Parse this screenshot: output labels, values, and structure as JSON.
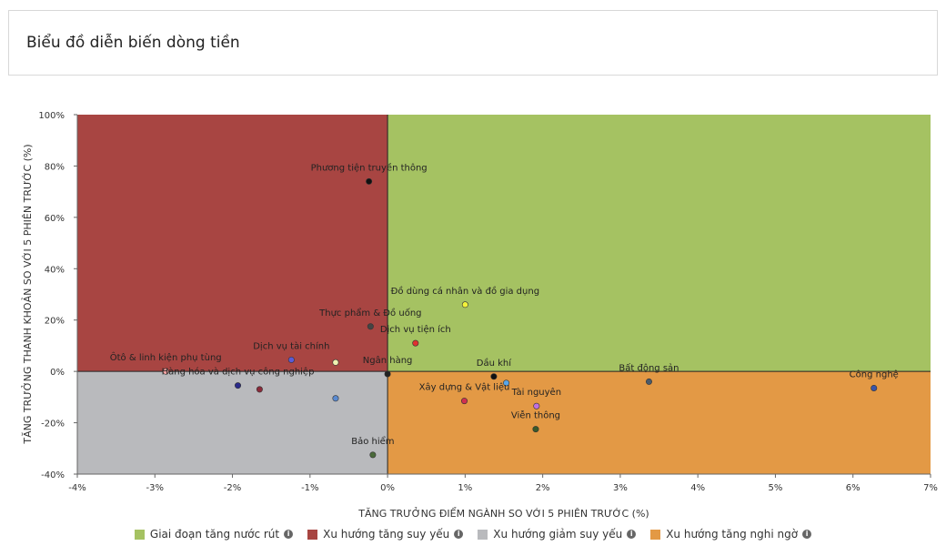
{
  "header": {
    "title": "Biểu đồ diễn biến dòng tiền"
  },
  "chart_data": {
    "type": "scatter",
    "xlabel": "TĂNG TRƯỞNG ĐIỂM NGÀNH SO VỚI 5 PHIÊN TRƯỚC (%)",
    "ylabel": "TĂNG TRƯỞNG THANH KHOẢN SO VỚI 5 PHIÊN TRƯỚC (%)",
    "xlim": [
      -4,
      7
    ],
    "ylim": [
      -40,
      100
    ],
    "x_ticks": [
      -4,
      -3,
      -2,
      -1,
      0,
      1,
      2,
      3,
      4,
      5,
      6,
      7
    ],
    "x_tick_labels": [
      "-4%",
      "-3%",
      "-2%",
      "-1%",
      "0%",
      "1%",
      "2%",
      "3%",
      "4%",
      "5%",
      "6%",
      "7%"
    ],
    "y_ticks": [
      -40,
      -20,
      0,
      20,
      40,
      60,
      80,
      100
    ],
    "y_tick_labels": [
      "-40%",
      "-20%",
      "0%",
      "20%",
      "40%",
      "60%",
      "80%",
      "100%"
    ],
    "quadrants": [
      {
        "name": "Giai đoạn tăng nước rút",
        "color": "#a5c262",
        "x": [
          0,
          7
        ],
        "y": [
          0,
          100
        ]
      },
      {
        "name": "Xu hướng tăng suy yếu",
        "color": "#a84542",
        "x": [
          -4,
          0
        ],
        "y": [
          0,
          100
        ]
      },
      {
        "name": "Xu hướng giảm suy yếu",
        "color": "#b9babd",
        "x": [
          -4,
          0
        ],
        "y": [
          -40,
          0
        ]
      },
      {
        "name": "Xu hướng tăng nghi ngờ",
        "color": "#e39945",
        "x": [
          0,
          7
        ],
        "y": [
          -40,
          0
        ]
      }
    ],
    "points": [
      {
        "label": "Phương tiện truyền thông",
        "x": -0.24,
        "y": 74,
        "color": "#111111"
      },
      {
        "label": "Đồ dùng cá nhân và đồ gia dụng",
        "x": 1.0,
        "y": 26,
        "color": "#f2f23a"
      },
      {
        "label": "Thực phẩm & Đồ uống",
        "x": -0.22,
        "y": 17.5,
        "color": "#444444"
      },
      {
        "label": "Dịch vụ tiện ích",
        "x": 0.36,
        "y": 11,
        "color": "#e03030"
      },
      {
        "label": "Dịch vụ tài chính",
        "x": -1.24,
        "y": 4.5,
        "color": "#5b5bd6"
      },
      {
        "label": "",
        "x": -0.67,
        "y": 3.5,
        "color": "#f0f0b0"
      },
      {
        "label": "Ôtô & linh kiện phụ tùng",
        "x": -2.86,
        "y": 0,
        "color": "#f0a0a0"
      },
      {
        "label": "Ngân hàng",
        "x": 0.0,
        "y": -1,
        "color": "#222222"
      },
      {
        "label": "Dầu khí",
        "x": 1.37,
        "y": -2,
        "color": "#111111"
      },
      {
        "label": "",
        "x": 1.53,
        "y": -4.5,
        "color": "#59a6e8"
      },
      {
        "label": "Bất động sản",
        "x": 3.37,
        "y": -4,
        "color": "#4a5a6a"
      },
      {
        "label": "Công nghệ",
        "x": 6.27,
        "y": -6.5,
        "color": "#3a55aa"
      },
      {
        "label": "Hàng hóa và dịch vụ công nghiệp",
        "x": -1.93,
        "y": -5.5,
        "color": "#2a2a8a"
      },
      {
        "label": "",
        "x": -1.65,
        "y": -7,
        "color": "#8a2a3a"
      },
      {
        "label": "",
        "x": -0.67,
        "y": -10.5,
        "color": "#5a8ad0"
      },
      {
        "label": "Xây dựng & Vật liệu",
        "x": 0.99,
        "y": -11.5,
        "color": "#d03050"
      },
      {
        "label": "Tài nguyên",
        "x": 1.92,
        "y": -13.5,
        "color": "#c070e0"
      },
      {
        "label": "Viễn thông",
        "x": 1.91,
        "y": -22.5,
        "color": "#3a5a2a"
      },
      {
        "label": "Bảo hiểm",
        "x": -0.19,
        "y": -32.5,
        "color": "#4a6a3a"
      }
    ]
  }
}
